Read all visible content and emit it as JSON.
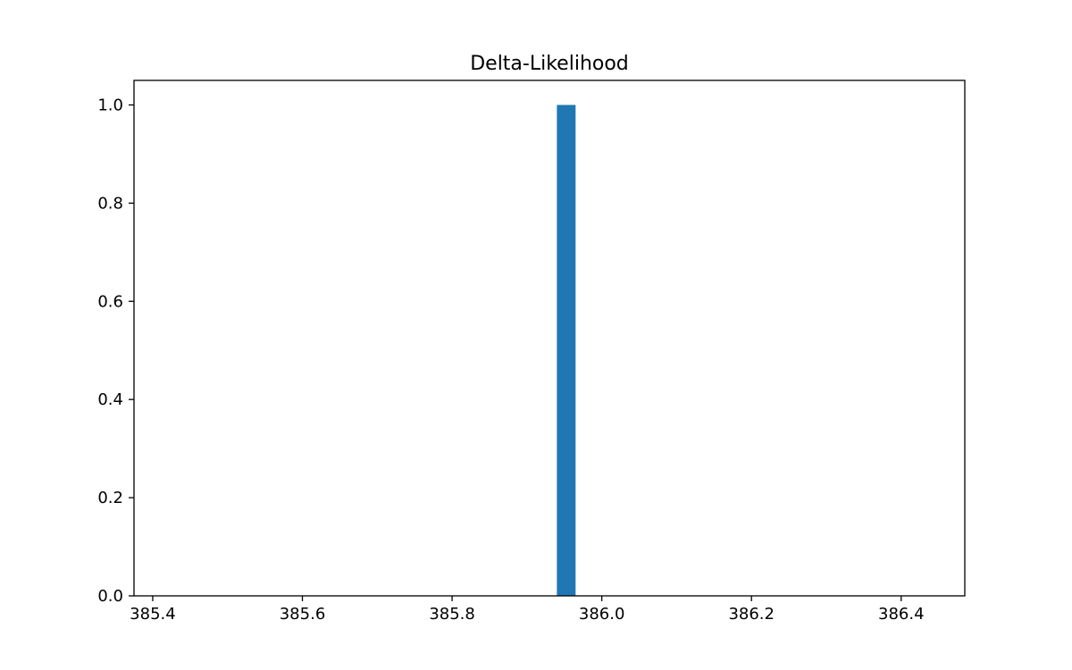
{
  "chart_data": {
    "type": "bar",
    "title": "Delta-Likelihood",
    "xlabel": "",
    "ylabel": "",
    "xlim": [
      385.375,
      386.485
    ],
    "ylim": [
      0,
      1.05
    ],
    "x_ticks": [
      385.4,
      385.6,
      385.8,
      386.0,
      386.2,
      386.4
    ],
    "x_tick_labels": [
      "385.4",
      "385.6",
      "385.8",
      "386.0",
      "386.2",
      "386.4"
    ],
    "y_ticks": [
      0.0,
      0.2,
      0.4,
      0.6,
      0.8,
      1.0
    ],
    "y_tick_labels": [
      "0.0",
      "0.2",
      "0.4",
      "0.6",
      "0.8",
      "1.0"
    ],
    "bars": [
      {
        "x_start": 385.94,
        "x_end": 385.965,
        "value": 1.0
      }
    ],
    "bar_color": "#1f77b4",
    "grid": false,
    "legend": "none"
  }
}
